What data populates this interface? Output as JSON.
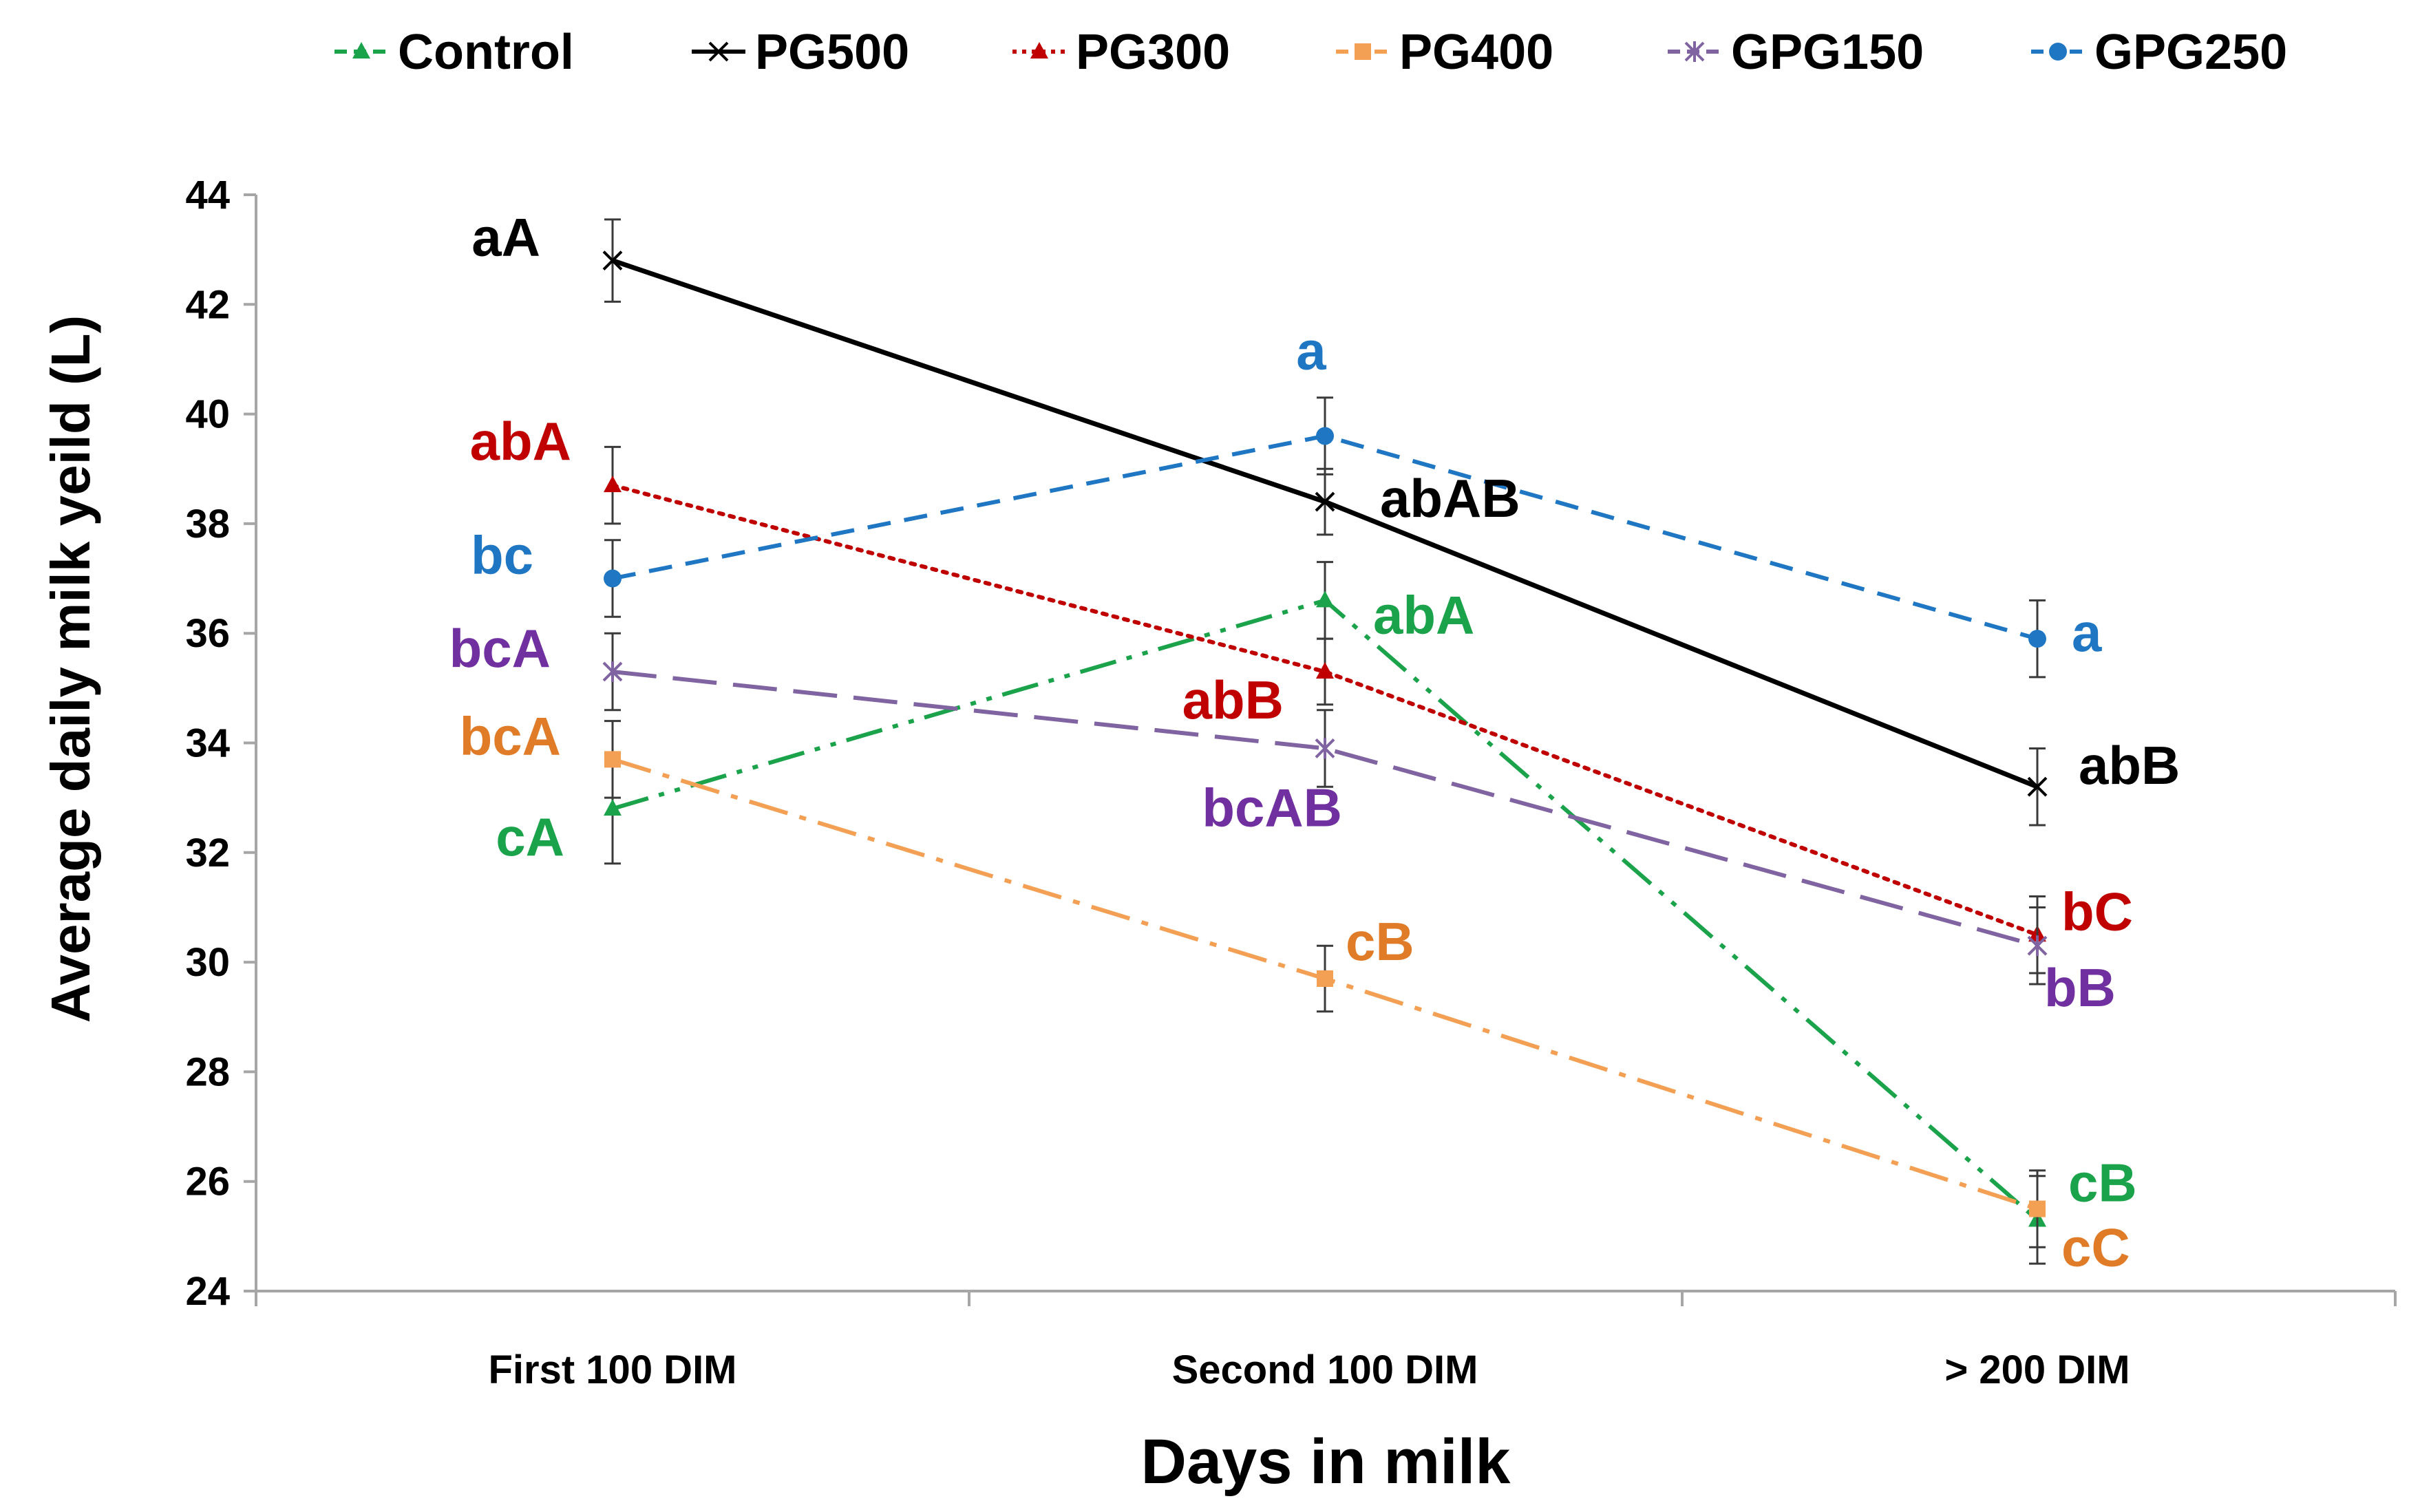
{
  "chart_data": {
    "type": "line",
    "title": "",
    "xlabel": "Days in milk",
    "ylabel": "Average daily milk yeild (L)",
    "categories": [
      "First 100 DIM",
      "Second 100 DIM",
      "> 200 DIM"
    ],
    "ylim": [
      24,
      44
    ],
    "yticks": [
      24,
      26,
      28,
      30,
      32,
      34,
      36,
      38,
      40,
      42,
      44
    ],
    "grid": false,
    "legend_position": "top",
    "series": [
      {
        "name": "Control",
        "color": "#1aa34a",
        "dash": "dash-dot-dot",
        "marker": "triangle",
        "values": [
          32.8,
          36.6,
          25.3
        ],
        "errors": [
          1.0,
          0.7,
          0.8
        ],
        "labels": [
          "cA",
          "abA",
          "cB"
        ]
      },
      {
        "name": "PG500",
        "color": "#000000",
        "dash": "solid",
        "marker": "x",
        "values": [
          42.8,
          38.4,
          33.2
        ],
        "errors": [
          0.75,
          0.6,
          0.7
        ],
        "labels": [
          "aA",
          "abAB",
          "abB"
        ]
      },
      {
        "name": "PG300",
        "color": "#c00000",
        "dash": "dotted",
        "marker": "triangle",
        "values": [
          38.7,
          35.3,
          30.5
        ],
        "errors": [
          0.7,
          0.6,
          0.7
        ],
        "labels": [
          "abA",
          "abB",
          "bC"
        ]
      },
      {
        "name": "PG400",
        "color": "#f4a054",
        "dash": "long-dash-dot",
        "marker": "square",
        "values": [
          33.7,
          29.7,
          25.5
        ],
        "errors": [
          0.7,
          0.6,
          0.7
        ],
        "labels": [
          "bcA",
          "cB",
          "cC"
        ]
      },
      {
        "name": "GPG150",
        "color": "#8064a2",
        "dash": "long-dash",
        "marker": "star",
        "values": [
          35.3,
          33.9,
          30.3
        ],
        "errors": [
          0.7,
          0.7,
          0.7
        ],
        "labels": [
          "bcA",
          "bcAB",
          "bB"
        ]
      },
      {
        "name": "GPG250",
        "color": "#1f77c4",
        "dash": "dash",
        "marker": "circle",
        "values": [
          37.0,
          39.6,
          35.9
        ],
        "errors": [
          0.7,
          0.7,
          0.7
        ],
        "labels": [
          "bc",
          "a",
          "a"
        ]
      }
    ]
  }
}
